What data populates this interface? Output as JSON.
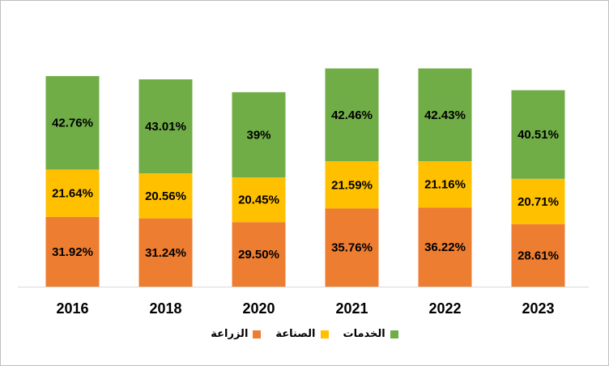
{
  "chart_data": {
    "type": "bar",
    "stacked": true,
    "categories": [
      "2016",
      "2018",
      "2020",
      "2021",
      "2022",
      "2023"
    ],
    "series": [
      {
        "name": "الزراعة",
        "color": "#ED7D31",
        "values": [
          31.92,
          31.24,
          29.5,
          35.76,
          36.22,
          28.61
        ],
        "labels": [
          "31.92%",
          "31.24%",
          "29.50%",
          "35.76%",
          "36.22%",
          "28.61%"
        ]
      },
      {
        "name": "الصناعة",
        "color": "#FFC000",
        "values": [
          21.64,
          20.56,
          20.45,
          21.59,
          21.16,
          20.71
        ],
        "labels": [
          "21.64%",
          "20.56%",
          "20.45%",
          "21.59%",
          "21.16%",
          "20.71%"
        ]
      },
      {
        "name": "الخدمات",
        "color": "#70AD47",
        "values": [
          42.76,
          43.01,
          39,
          42.46,
          42.43,
          40.51
        ],
        "labels": [
          "42.76%",
          "43.01%",
          "39%",
          "42.46%",
          "42.43%",
          "40.51%"
        ]
      }
    ],
    "legend_position": "bottom",
    "grid": false
  }
}
